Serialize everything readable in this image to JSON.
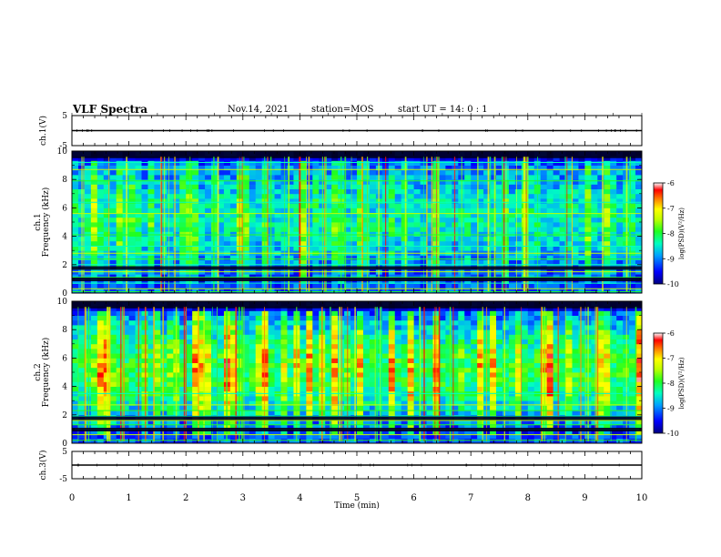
{
  "header": {
    "title": "VLF Spectra",
    "date": "Nov.14, 2021",
    "station": "station=MOS",
    "start": "start  UT =   14: 0  : 1"
  },
  "chart_data": [
    {
      "type": "line",
      "panel": "ch1-waveform",
      "ylabel": "ch.1(V)",
      "ylim": [
        -5,
        5
      ],
      "yticks": [
        "5",
        "-5"
      ],
      "x": [
        0,
        10
      ],
      "values": [
        0,
        0
      ],
      "color": "#000000"
    },
    {
      "type": "heatmap",
      "panel": "ch1-spectrogram",
      "ylabel": "ch.1\nFrequency (kHz)",
      "ylim": [
        0,
        10
      ],
      "yticks": [
        "0",
        "2",
        "4",
        "6",
        "8",
        "10"
      ],
      "xlim": [
        0,
        10
      ],
      "colorbar": {
        "label": "log(PSD)(V²/Hz)",
        "range": [
          -10,
          -6
        ],
        "ticks": [
          "-6",
          "-7",
          "-8",
          "-9",
          "-10"
        ],
        "colors": [
          "#000080",
          "#0000ff",
          "#00a0ff",
          "#00ffc0",
          "#20ff20",
          "#c0ff00",
          "#ffff00",
          "#ff8000",
          "#ff0000",
          "#ffffff"
        ]
      },
      "bands_khz": [
        0.1,
        0.3,
        0.7,
        1.1,
        1.5,
        2.0,
        2.4,
        2.8,
        3.3,
        4.1,
        5.6,
        6.4,
        7.9,
        8.7,
        9.2
      ],
      "intensity": 0.45
    },
    {
      "type": "heatmap",
      "panel": "ch2-spectrogram",
      "ylabel": "ch.2\nFrequency (kHz)",
      "ylim": [
        0,
        10
      ],
      "yticks": [
        "0",
        "2",
        "4",
        "6",
        "8",
        "10"
      ],
      "xlim": [
        0,
        10
      ],
      "colorbar": {
        "label": "log(PSD)(V²/Hz)",
        "range": [
          -10,
          -6
        ],
        "ticks": [
          "-6",
          "-7",
          "-8",
          "-9",
          "-10"
        ]
      },
      "bands_khz": [
        0.2,
        0.6,
        1.0,
        1.3,
        1.6,
        1.9,
        2.3,
        2.7,
        3.5
      ],
      "intensity": 0.7
    },
    {
      "type": "line",
      "panel": "ch3-waveform",
      "ylabel": "ch.3(V)",
      "ylim": [
        -5,
        5
      ],
      "yticks": [
        "5",
        "-5"
      ],
      "x": [
        0,
        10
      ],
      "values": [
        0,
        0
      ],
      "color": "#000000"
    }
  ],
  "xaxis": {
    "label": "Time (min)",
    "ticks": [
      "0",
      "1",
      "2",
      "3",
      "4",
      "5",
      "6",
      "7",
      "8",
      "9",
      "10"
    ],
    "range": [
      0,
      10
    ]
  }
}
